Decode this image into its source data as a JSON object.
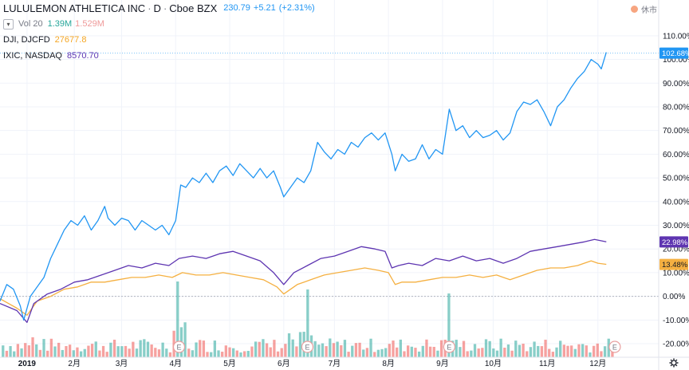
{
  "header": {
    "symbol": "LULULEMON ATHLETICA INC",
    "interval": "D",
    "exchange": "Cboe BZX",
    "price": "230.79",
    "change": "+5.21",
    "change_pct": "(+2.31%)",
    "status": "休市"
  },
  "volume": {
    "label": "Vol 20",
    "value1": "1.39M",
    "value2": "1.529M"
  },
  "compare": [
    {
      "label": "DJI, DJCFD",
      "value": "27677.8"
    },
    {
      "label": "IXIC, NASDAQ",
      "value": "8570.70"
    }
  ],
  "colors": {
    "main": "#2196f3",
    "dji": "#f5b041",
    "ixic": "#5e35b1",
    "vol_up": "#26a69a",
    "vol_down": "#ef5350"
  },
  "icons": {
    "collapse": "chevron-down-icon",
    "status": "dot-icon",
    "settings": "gear-icon",
    "earnings": "earnings-marker-icon"
  },
  "chart_data": {
    "type": "line",
    "title": "LULULEMON ATHLETICA INC · D · Cboe BZX",
    "ylabel": "",
    "xlabel": "",
    "ylim": [
      -22,
      115
    ],
    "y_ticks": [
      "110.00%",
      "100.00%",
      "90.00%",
      "80.00%",
      "70.00%",
      "60.00%",
      "50.00%",
      "40.00%",
      "30.00%",
      "20.00%",
      "10.00%",
      "0.00%",
      "-10.00%",
      "-20.00%"
    ],
    "y_tick_values": [
      110,
      100,
      90,
      80,
      70,
      60,
      50,
      40,
      30,
      20,
      10,
      0,
      -10,
      -20
    ],
    "x_ticks": [
      "2019",
      "2月",
      "3月",
      "4月",
      "5月",
      "6月",
      "7月",
      "8月",
      "9月",
      "10月",
      "11月",
      "12月"
    ],
    "x_tick_values": [
      0.8,
      2.2,
      3.6,
      5.2,
      6.8,
      8.4,
      9.9,
      11.5,
      13.1,
      14.6,
      16.2,
      17.7
    ],
    "x_range": [
      0,
      19.5
    ],
    "earnings_markers": {
      "x": [
        5.3,
        9.1,
        13.3,
        18.2
      ],
      "label": "E"
    },
    "last_labels": [
      {
        "series": "LULULEMON ATHLETICA INC",
        "text": "102.68%",
        "value": 102.68
      },
      {
        "series": "IXIC, NASDAQ",
        "text": "22.98%",
        "value": 22.98
      },
      {
        "series": "DJI, DJCFD",
        "text": "13.48%",
        "value": 13.48
      }
    ],
    "series": [
      {
        "name": "LULULEMON ATHLETICA INC",
        "points": [
          [
            0,
            -2
          ],
          [
            0.2,
            5
          ],
          [
            0.4,
            3
          ],
          [
            0.6,
            -4
          ],
          [
            0.7,
            -10
          ],
          [
            0.9,
            0
          ],
          [
            1.1,
            4
          ],
          [
            1.3,
            8
          ],
          [
            1.5,
            16
          ],
          [
            1.7,
            22
          ],
          [
            1.9,
            28
          ],
          [
            2.1,
            32
          ],
          [
            2.3,
            30
          ],
          [
            2.5,
            34
          ],
          [
            2.7,
            28
          ],
          [
            2.9,
            32
          ],
          [
            3.1,
            38
          ],
          [
            3.2,
            33
          ],
          [
            3.4,
            30
          ],
          [
            3.6,
            33
          ],
          [
            3.8,
            32
          ],
          [
            4.0,
            28
          ],
          [
            4.2,
            32
          ],
          [
            4.4,
            30
          ],
          [
            4.6,
            28
          ],
          [
            4.8,
            30
          ],
          [
            5.0,
            26
          ],
          [
            5.2,
            32
          ],
          [
            5.35,
            47
          ],
          [
            5.5,
            46
          ],
          [
            5.7,
            50
          ],
          [
            5.9,
            48
          ],
          [
            6.1,
            52
          ],
          [
            6.3,
            48
          ],
          [
            6.5,
            53
          ],
          [
            6.7,
            55
          ],
          [
            6.9,
            51
          ],
          [
            7.1,
            56
          ],
          [
            7.3,
            53
          ],
          [
            7.5,
            50
          ],
          [
            7.7,
            54
          ],
          [
            7.9,
            50
          ],
          [
            8.1,
            53
          ],
          [
            8.3,
            46
          ],
          [
            8.4,
            42
          ],
          [
            8.6,
            46
          ],
          [
            8.8,
            50
          ],
          [
            9.0,
            48
          ],
          [
            9.2,
            53
          ],
          [
            9.4,
            65
          ],
          [
            9.6,
            61
          ],
          [
            9.8,
            58
          ],
          [
            10.0,
            62
          ],
          [
            10.2,
            60
          ],
          [
            10.4,
            65
          ],
          [
            10.6,
            63
          ],
          [
            10.8,
            67
          ],
          [
            11.0,
            69
          ],
          [
            11.2,
            66
          ],
          [
            11.4,
            69
          ],
          [
            11.6,
            60
          ],
          [
            11.7,
            53
          ],
          [
            11.9,
            60
          ],
          [
            12.1,
            57
          ],
          [
            12.3,
            58
          ],
          [
            12.5,
            64
          ],
          [
            12.7,
            58
          ],
          [
            12.9,
            62
          ],
          [
            13.1,
            60
          ],
          [
            13.3,
            79
          ],
          [
            13.5,
            70
          ],
          [
            13.7,
            72
          ],
          [
            13.9,
            67
          ],
          [
            14.1,
            70
          ],
          [
            14.3,
            67
          ],
          [
            14.5,
            68
          ],
          [
            14.7,
            70
          ],
          [
            14.9,
            66
          ],
          [
            15.1,
            69
          ],
          [
            15.3,
            78
          ],
          [
            15.5,
            82
          ],
          [
            15.7,
            81
          ],
          [
            15.9,
            83
          ],
          [
            16.1,
            78
          ],
          [
            16.3,
            72
          ],
          [
            16.5,
            80
          ],
          [
            16.7,
            83
          ],
          [
            16.9,
            88
          ],
          [
            17.1,
            92
          ],
          [
            17.3,
            95
          ],
          [
            17.5,
            100
          ],
          [
            17.7,
            98
          ],
          [
            17.8,
            96
          ],
          [
            17.95,
            103
          ]
        ]
      },
      {
        "name": "IXIC, NASDAQ",
        "points": [
          [
            0,
            -3
          ],
          [
            0.5,
            -6
          ],
          [
            0.8,
            -11
          ],
          [
            1.0,
            -3
          ],
          [
            1.4,
            1
          ],
          [
            1.8,
            3
          ],
          [
            2.2,
            6
          ],
          [
            2.6,
            7
          ],
          [
            3.0,
            9
          ],
          [
            3.4,
            11
          ],
          [
            3.8,
            13
          ],
          [
            4.2,
            12
          ],
          [
            4.6,
            14
          ],
          [
            5.0,
            13
          ],
          [
            5.3,
            16
          ],
          [
            5.7,
            17
          ],
          [
            6.1,
            16
          ],
          [
            6.5,
            18
          ],
          [
            6.9,
            19
          ],
          [
            7.3,
            17
          ],
          [
            7.7,
            15
          ],
          [
            8.1,
            10
          ],
          [
            8.4,
            5
          ],
          [
            8.7,
            10
          ],
          [
            9.1,
            13
          ],
          [
            9.5,
            16
          ],
          [
            9.9,
            17
          ],
          [
            10.3,
            19
          ],
          [
            10.7,
            21
          ],
          [
            11.1,
            20
          ],
          [
            11.4,
            19
          ],
          [
            11.6,
            12
          ],
          [
            11.8,
            13
          ],
          [
            12.1,
            14
          ],
          [
            12.5,
            13
          ],
          [
            12.9,
            16
          ],
          [
            13.3,
            15
          ],
          [
            13.7,
            17
          ],
          [
            14.1,
            15
          ],
          [
            14.5,
            16
          ],
          [
            14.9,
            14
          ],
          [
            15.3,
            16
          ],
          [
            15.7,
            19
          ],
          [
            16.1,
            20
          ],
          [
            16.5,
            21
          ],
          [
            16.9,
            22
          ],
          [
            17.3,
            23
          ],
          [
            17.6,
            24
          ],
          [
            17.95,
            23
          ]
        ]
      },
      {
        "name": "DJI, DJCFD",
        "points": [
          [
            0,
            -1
          ],
          [
            0.5,
            -5
          ],
          [
            0.8,
            -8
          ],
          [
            1.1,
            -2
          ],
          [
            1.5,
            0
          ],
          [
            1.9,
            3
          ],
          [
            2.3,
            4
          ],
          [
            2.7,
            6
          ],
          [
            3.1,
            6
          ],
          [
            3.5,
            7
          ],
          [
            3.9,
            8
          ],
          [
            4.3,
            8
          ],
          [
            4.7,
            9
          ],
          [
            5.1,
            8
          ],
          [
            5.4,
            10
          ],
          [
            5.8,
            9
          ],
          [
            6.2,
            9
          ],
          [
            6.6,
            10
          ],
          [
            7.0,
            9
          ],
          [
            7.4,
            8
          ],
          [
            7.8,
            7
          ],
          [
            8.2,
            4
          ],
          [
            8.4,
            1
          ],
          [
            8.8,
            5
          ],
          [
            9.2,
            7
          ],
          [
            9.6,
            9
          ],
          [
            10.0,
            10
          ],
          [
            10.4,
            11
          ],
          [
            10.8,
            12
          ],
          [
            11.2,
            11
          ],
          [
            11.5,
            10
          ],
          [
            11.7,
            5
          ],
          [
            11.9,
            6
          ],
          [
            12.3,
            6
          ],
          [
            12.7,
            7
          ],
          [
            13.1,
            8
          ],
          [
            13.5,
            8
          ],
          [
            13.9,
            9
          ],
          [
            14.3,
            8
          ],
          [
            14.7,
            9
          ],
          [
            15.1,
            7
          ],
          [
            15.5,
            9
          ],
          [
            15.9,
            11
          ],
          [
            16.3,
            12
          ],
          [
            16.7,
            12
          ],
          [
            17.1,
            13
          ],
          [
            17.5,
            15
          ],
          [
            17.7,
            14
          ],
          [
            17.95,
            13.5
          ]
        ]
      }
    ]
  }
}
